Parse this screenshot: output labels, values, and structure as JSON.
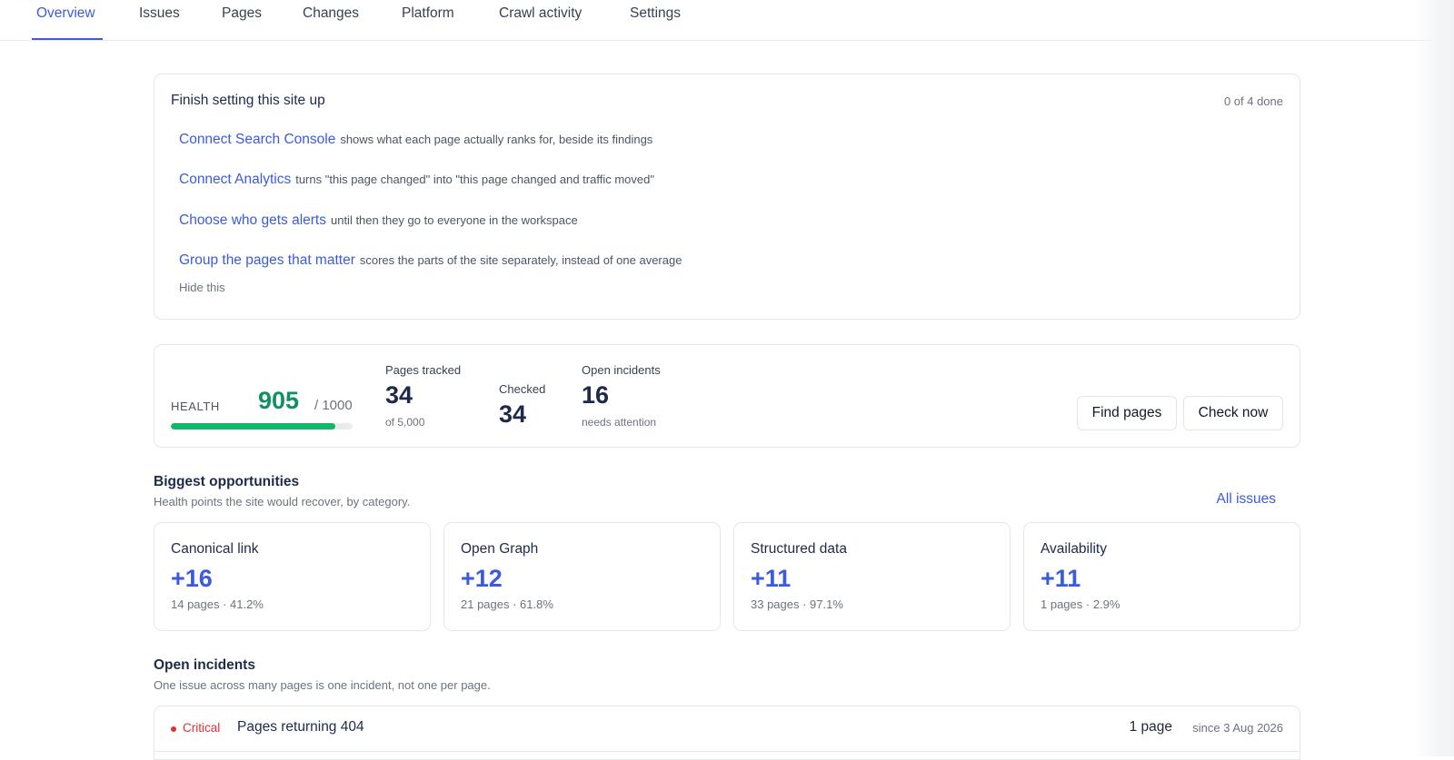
{
  "nav": {
    "tabs": [
      {
        "label": "Overview",
        "active": true
      },
      {
        "label": "Issues"
      },
      {
        "label": "Pages"
      },
      {
        "label": "Changes"
      },
      {
        "label": "Platform"
      },
      {
        "label": "Crawl activity"
      },
      {
        "label": "Settings"
      }
    ]
  },
  "setup": {
    "title": "Finish setting this site up",
    "progress": "0 of 4 done",
    "items": [
      {
        "link": "Connect Search Console",
        "desc": "shows what each page actually ranks for, beside its findings"
      },
      {
        "link": "Connect Analytics",
        "desc": "turns \"this page changed\" into \"this page changed and traffic moved\""
      },
      {
        "link": "Choose who gets alerts",
        "desc": "until then they go to everyone in the workspace"
      },
      {
        "link": "Group the pages that matter",
        "desc": "scores the parts of the site separately, instead of one average"
      }
    ],
    "hide_label": "Hide this"
  },
  "health": {
    "label": "HEALTH",
    "score": "905",
    "max": "/ 1000",
    "fraction": 0.905,
    "accent": "#12b76a"
  },
  "stats": {
    "tracked": {
      "label": "Pages tracked",
      "value": "34",
      "sub": "of 5,000"
    },
    "checked": {
      "label": "Checked",
      "value": "34"
    },
    "incidents": {
      "label": "Open incidents",
      "value": "16",
      "sub": "needs attention"
    }
  },
  "actions": {
    "find_pages": "Find pages",
    "check_now": "Check now"
  },
  "opportunities": {
    "title": "Biggest opportunities",
    "subtitle": "Health points the site would recover, by category.",
    "all_issues": "All issues",
    "items": [
      {
        "name": "Canonical link",
        "points": "+16",
        "meta": "14 pages · 41.2%"
      },
      {
        "name": "Open Graph",
        "points": "+12",
        "meta": "21 pages · 61.8%"
      },
      {
        "name": "Structured data",
        "points": "+11",
        "meta": "33 pages · 97.1%"
      },
      {
        "name": "Availability",
        "points": "+11",
        "meta": "1 pages · 2.9%"
      }
    ]
  },
  "incidents": {
    "title": "Open incidents",
    "subtitle": "One issue across many pages is one incident, not one per page.",
    "rows": [
      {
        "severity": "Critical",
        "title": "Pages returning 404",
        "pages": "1 page",
        "since": "since 3 Aug 2026"
      }
    ],
    "critical_color": "#e03131"
  },
  "colors": {
    "link": "#3b5bdb",
    "heading": "#1e2a4a"
  }
}
